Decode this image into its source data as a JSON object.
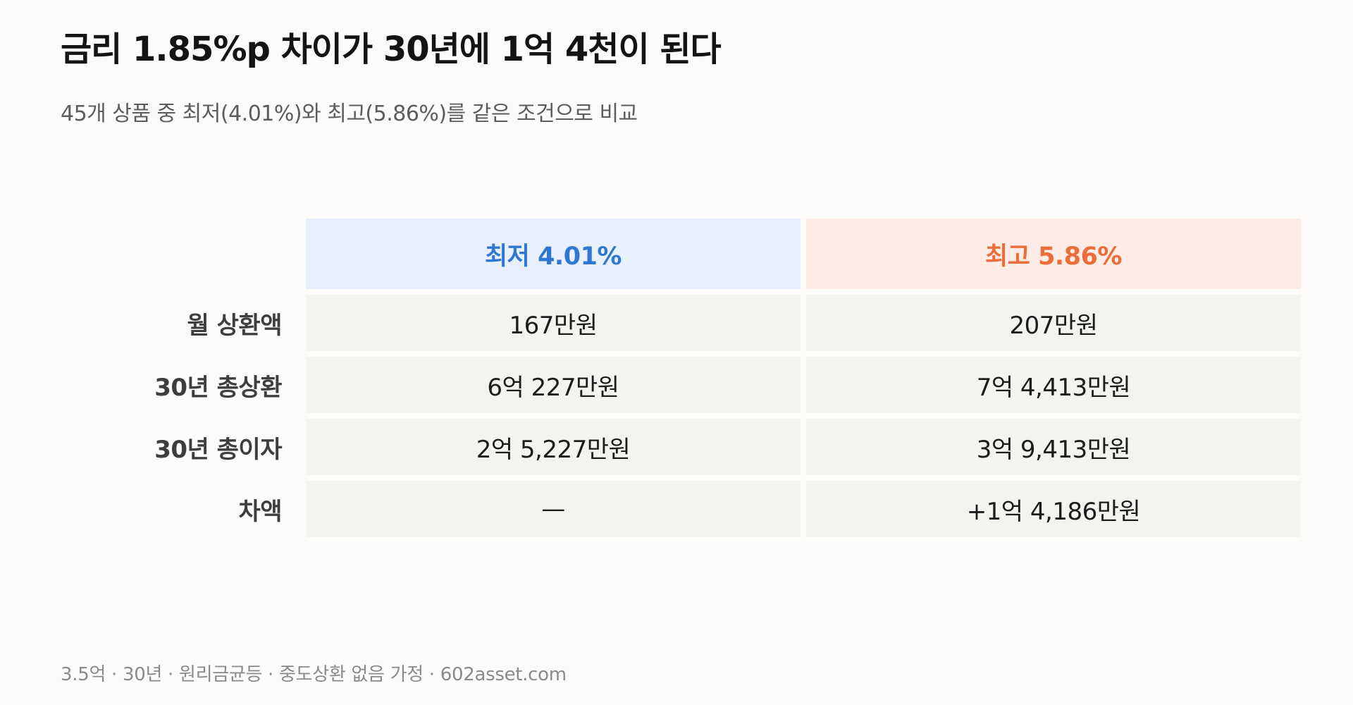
{
  "title": "금리 1.85%p 차이가 30년에 1억 4천이 된다",
  "subtitle": "45개 상품 중 최저(4.01%)와 최고(5.86%)를 같은 조건으로 비교",
  "table": {
    "headers": {
      "low": "최저 4.01%",
      "high": "최고 5.86%"
    },
    "rows": [
      {
        "label": "월 상환액",
        "low": "167만원",
        "high": "207만원"
      },
      {
        "label": "30년 총상환",
        "low": "6억 227만원",
        "high": "7억 4,413만원"
      },
      {
        "label": "30년 총이자",
        "low": "2억 5,227만원",
        "high": "3억 9,413만원"
      },
      {
        "label": "차액",
        "low": "—",
        "high": "+1억 4,186만원"
      }
    ]
  },
  "footer": "3.5억 · 30년 · 원리금균등 · 중도상환 없음 가정 · 602asset.com",
  "colors": {
    "low_accent": "#2f78d2",
    "low_header_bg": "#e9f0fd",
    "high_accent": "#ec6d3a",
    "high_header_bg": "#fdece5",
    "cell_bg": "#f4f3f0",
    "page_bg": "#fcfbf9"
  }
}
